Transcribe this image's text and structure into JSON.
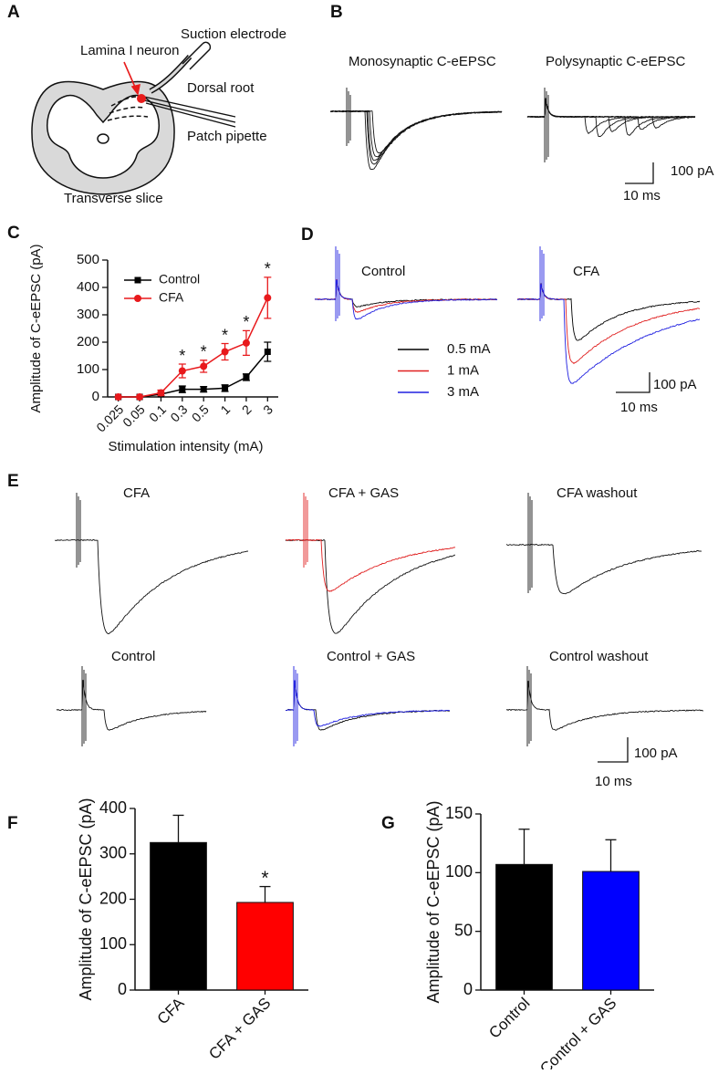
{
  "panels": {
    "A": {
      "letter": "A",
      "labels": {
        "suction": "Suction electrode",
        "neuron": "Lamina I neuron",
        "root": "Dorsal root",
        "pipette": "Patch pipette",
        "slice": "Transverse slice"
      }
    },
    "B": {
      "letter": "B",
      "titles": [
        "Monosynaptic C-eEPSC",
        "Polysynaptic C-eEPSC"
      ],
      "scale_y": "100 pA",
      "scale_x": "10 ms"
    },
    "C": {
      "letter": "C"
    },
    "D": {
      "letter": "D",
      "titles": [
        "Control",
        "CFA"
      ],
      "legend": [
        {
          "label": "0.5 mA",
          "color": "#000000"
        },
        {
          "label": "1 mA",
          "color": "#e02020"
        },
        {
          "label": "3 mA",
          "color": "#2020e0"
        }
      ],
      "scale_y": "100 pA",
      "scale_x": "10 ms"
    },
    "E": {
      "letter": "E",
      "titles": [
        "CFA",
        "CFA + GAS",
        "CFA washout",
        "Control",
        "Control + GAS",
        "Control washout"
      ],
      "scale_y": "100 pA",
      "scale_x": "10 ms"
    },
    "F": {
      "letter": "F"
    },
    "G": {
      "letter": "G"
    }
  },
  "chart_data": [
    {
      "type": "line",
      "ylabel": "Amplitude of C-eEPSC (pA)",
      "xlabel": "Stimulation intensity (mA)",
      "categories": [
        "0.025",
        "0.05",
        "0.1",
        "0.3",
        "0.5",
        "1",
        "2",
        "3"
      ],
      "series": [
        {
          "name": "Control",
          "color": "#000000",
          "marker": "square",
          "values": [
            0,
            0,
            10,
            28,
            28,
            32,
            72,
            165
          ],
          "errors": [
            0,
            0,
            5,
            12,
            10,
            12,
            12,
            35
          ]
        },
        {
          "name": "CFA",
          "color": "#e8191c",
          "marker": "circle",
          "values": [
            0,
            0,
            15,
            95,
            112,
            165,
            197,
            362
          ],
          "errors": [
            0,
            0,
            10,
            25,
            22,
            30,
            45,
            75
          ]
        }
      ],
      "ylim": [
        0,
        500
      ],
      "yticks": [
        0,
        100,
        200,
        300,
        400,
        500
      ],
      "legend": "upper left",
      "annotations": [
        {
          "text": "*",
          "category": "0.3"
        },
        {
          "text": "*",
          "category": "0.5"
        },
        {
          "text": "*",
          "category": "1"
        },
        {
          "text": "*",
          "category": "2"
        },
        {
          "text": "*",
          "category": "3"
        }
      ]
    },
    {
      "type": "bar",
      "ylabel": "Amplitude of C-eEPSC (pA)",
      "categories": [
        "CFA",
        "CFA + GAS"
      ],
      "values": [
        325,
        193
      ],
      "errors": [
        60,
        35
      ],
      "colors": [
        "#000000",
        "#ff0000"
      ],
      "ylim": [
        0,
        400
      ],
      "yticks": [
        0,
        100,
        200,
        300,
        400
      ],
      "annotations": [
        {
          "text": "*",
          "category": "CFA + GAS"
        }
      ]
    },
    {
      "type": "bar",
      "ylabel": "Amplitude of C-eEPSC (pA)",
      "categories": [
        "Control",
        "Control + GAS"
      ],
      "values": [
        107,
        101
      ],
      "errors": [
        30,
        27
      ],
      "colors": [
        "#000000",
        "#0000ff"
      ],
      "ylim": [
        0,
        150
      ],
      "yticks": [
        0,
        50,
        100,
        150
      ]
    }
  ]
}
